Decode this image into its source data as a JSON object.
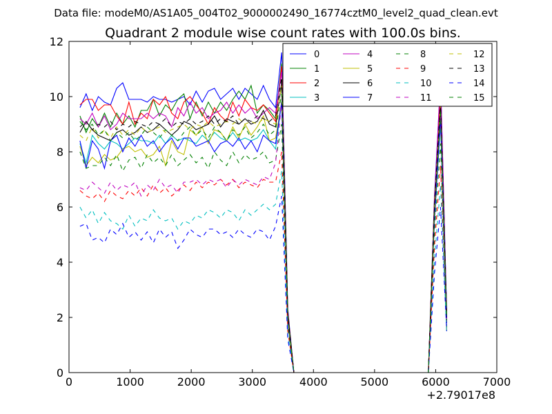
{
  "figure": {
    "suptitle": "Data file: modeM0/AS1A05_004T02_9000002490_16774cztM0_level2_quad_clean.evt"
  },
  "chart_data": {
    "type": "line",
    "title": "Quadrant 2 module wise count rates with 100.0s bins.",
    "xlabel": "",
    "ylabel": "",
    "x_offset_label": "+2.79017e8",
    "xlim": [
      0,
      7000
    ],
    "ylim": [
      0,
      12
    ],
    "x_ticks": [
      0,
      1000,
      2000,
      3000,
      4000,
      5000,
      6000,
      7000
    ],
    "y_ticks": [
      0,
      2,
      4,
      6,
      8,
      10,
      12
    ],
    "grid": false,
    "legend": {
      "placement": "top-right",
      "columns": 4
    },
    "x": [
      180,
      280,
      380,
      480,
      580,
      680,
      780,
      880,
      980,
      1080,
      1180,
      1280,
      1380,
      1480,
      1580,
      1680,
      1780,
      1880,
      1980,
      2080,
      2180,
      2280,
      2380,
      2480,
      2580,
      2680,
      2780,
      2880,
      2980,
      3080,
      3180,
      3280,
      3380,
      3480,
      3580,
      3680,
      3780,
      5880,
      5980,
      6080,
      6180
    ],
    "series": [
      {
        "name": "0",
        "color": "#0000ff",
        "dash": "solid",
        "values": [
          9.6,
          10.1,
          9.5,
          10.0,
          9.8,
          9.7,
          10.3,
          10.5,
          9.9,
          9.9,
          9.9,
          9.8,
          10.0,
          9.9,
          9.9,
          9.8,
          9.9,
          10.0,
          9.7,
          10.2,
          9.8,
          10.2,
          10.3,
          9.9,
          10.1,
          10.3,
          9.9,
          10.3,
          10.1,
          9.9,
          10.4,
          9.9,
          9.6,
          11.6,
          2.3,
          0.0,
          0.0,
          0.0,
          6.4,
          10.6,
          2.2
        ]
      },
      {
        "name": "1",
        "color": "#008000",
        "dash": "solid",
        "values": [
          9.3,
          8.7,
          9.2,
          8.9,
          9.4,
          8.9,
          9.4,
          9.0,
          9.3,
          8.9,
          9.5,
          9.5,
          9.9,
          9.3,
          9.7,
          9.5,
          9.9,
          10.1,
          9.2,
          9.8,
          9.3,
          9.8,
          9.4,
          9.8,
          9.5,
          9.9,
          10.2,
          9.9,
          10.4,
          9.4,
          9.7,
          9.5,
          9.2,
          11.2,
          2.2,
          0.0,
          0.0,
          0.0,
          6.2,
          10.3,
          2.1
        ]
      },
      {
        "name": "2",
        "color": "#ff0000",
        "dash": "solid",
        "values": [
          9.7,
          9.9,
          9.9,
          9.5,
          9.7,
          9.7,
          9.3,
          9.0,
          9.8,
          9.0,
          9.4,
          9.2,
          9.9,
          9.7,
          10.0,
          9.4,
          9.2,
          9.8,
          10.0,
          9.7,
          9.4,
          9.0,
          9.6,
          9.3,
          9.1,
          9.8,
          9.3,
          9.9,
          9.6,
          9.5,
          9.7,
          9.4,
          9.1,
          11.1,
          2.2,
          0.0,
          0.0,
          0.0,
          6.3,
          10.2,
          2.0
        ]
      },
      {
        "name": "3",
        "color": "#00bfbf",
        "dash": "solid",
        "values": [
          8.3,
          7.6,
          8.6,
          8.3,
          8.1,
          8.4,
          8.3,
          8.1,
          8.3,
          8.5,
          8.4,
          8.4,
          8.3,
          8.6,
          8.3,
          8.6,
          8.4,
          8.5,
          8.4,
          8.3,
          8.6,
          8.4,
          8.7,
          8.5,
          8.4,
          8.7,
          8.4,
          8.5,
          8.4,
          8.5,
          8.8,
          8.4,
          8.1,
          9.8,
          1.9,
          0.0,
          0.0,
          0.0,
          5.5,
          9.0,
          1.8
        ]
      },
      {
        "name": "4",
        "color": "#bf00bf",
        "dash": "solid",
        "values": [
          9.2,
          9.0,
          9.4,
          8.9,
          9.3,
          8.8,
          9.0,
          9.4,
          9.2,
          9.2,
          9.2,
          9.4,
          9.2,
          9.4,
          9.3,
          8.9,
          9.6,
          9.3,
          9.8,
          9.4,
          9.6,
          9.2,
          9.4,
          9.5,
          9.8,
          9.4,
          9.7,
          9.4,
          9.6,
          9.2,
          9.4,
          9.6,
          9.4,
          10.9,
          2.1,
          0.0,
          0.0,
          0.0,
          6.2,
          10.7,
          2.1
        ]
      },
      {
        "name": "5",
        "color": "#bfbf00",
        "dash": "solid",
        "values": [
          8.2,
          7.5,
          7.8,
          7.6,
          7.9,
          7.7,
          7.8,
          8.1,
          8.2,
          8.0,
          8.1,
          7.8,
          7.9,
          8.2,
          7.5,
          8.4,
          8.0,
          7.9,
          8.8,
          8.6,
          8.9,
          8.3,
          8.8,
          8.7,
          8.4,
          8.9,
          8.5,
          9.0,
          8.6,
          8.9,
          9.3,
          8.4,
          8.5,
          9.8,
          1.9,
          0.0,
          0.0,
          0.0,
          5.6,
          9.2,
          1.8
        ]
      },
      {
        "name": "6",
        "color": "#000000",
        "dash": "solid",
        "values": [
          8.7,
          9.1,
          8.8,
          8.6,
          8.5,
          8.4,
          8.7,
          8.8,
          8.6,
          8.7,
          8.9,
          8.7,
          8.8,
          9.0,
          8.8,
          8.6,
          8.8,
          9.1,
          9.0,
          8.8,
          8.9,
          9.0,
          9.3,
          8.9,
          9.2,
          9.1,
          9.0,
          9.2,
          9.0,
          9.1,
          9.5,
          9.0,
          8.9,
          10.5,
          2.1,
          0.0,
          0.0,
          0.0,
          6.0,
          9.7,
          2.0
        ]
      },
      {
        "name": "7",
        "color": "#0000ff",
        "dash": "solid",
        "values": [
          8.4,
          7.4,
          8.4,
          8.1,
          7.4,
          8.4,
          8.6,
          8.0,
          8.5,
          8.2,
          8.6,
          8.2,
          8.4,
          8.0,
          8.3,
          8.5,
          8.1,
          8.5,
          8.5,
          8.2,
          8.3,
          8.4,
          8.0,
          8.3,
          8.4,
          8.2,
          8.5,
          8.1,
          8.4,
          8.0,
          8.6,
          8.4,
          8.3,
          9.8,
          1.9,
          0.0,
          0.0,
          0.0,
          5.6,
          9.2,
          1.8
        ]
      },
      {
        "name": "8",
        "color": "#008000",
        "dash": "dashed",
        "values": [
          8.0,
          7.4,
          7.5,
          7.5,
          7.8,
          7.5,
          7.9,
          7.3,
          7.7,
          7.8,
          7.4,
          7.9,
          7.6,
          7.8,
          7.5,
          7.9,
          7.5,
          7.7,
          7.9,
          7.6,
          7.8,
          7.4,
          8.0,
          7.7,
          7.5,
          8.0,
          7.6,
          7.9,
          7.7,
          7.8,
          8.0,
          7.6,
          7.7,
          9.0,
          1.7,
          0.0,
          0.0,
          0.0,
          5.1,
          8.3,
          1.6
        ]
      },
      {
        "name": "9",
        "color": "#ff0000",
        "dash": "dashed",
        "values": [
          6.6,
          6.4,
          6.3,
          6.5,
          6.2,
          6.6,
          6.4,
          6.3,
          6.6,
          6.4,
          6.7,
          6.4,
          6.8,
          6.5,
          6.7,
          6.4,
          6.6,
          6.8,
          6.6,
          6.9,
          6.7,
          6.9,
          6.8,
          7.0,
          6.8,
          7.0,
          6.7,
          6.9,
          6.8,
          6.7,
          7.0,
          6.9,
          6.9,
          8.0,
          1.5,
          0.0,
          0.0,
          0.0,
          4.6,
          7.5,
          1.5
        ]
      },
      {
        "name": "10",
        "color": "#00bfbf",
        "dash": "dashed",
        "values": [
          6.0,
          5.6,
          5.9,
          5.4,
          5.8,
          5.5,
          5.4,
          5.2,
          5.7,
          5.3,
          5.6,
          5.5,
          5.9,
          5.6,
          5.5,
          5.6,
          5.2,
          5.5,
          5.4,
          5.7,
          5.6,
          5.9,
          5.8,
          5.6,
          5.9,
          5.8,
          5.5,
          5.9,
          5.7,
          5.9,
          6.1,
          5.9,
          6.1,
          7.3,
          1.4,
          0.0,
          0.0,
          0.0,
          4.1,
          6.8,
          1.4
        ]
      },
      {
        "name": "11",
        "color": "#bf00bf",
        "dash": "dashed",
        "values": [
          6.7,
          6.6,
          6.9,
          6.7,
          6.5,
          6.9,
          6.6,
          6.8,
          6.7,
          6.9,
          6.4,
          6.8,
          6.6,
          7.0,
          6.7,
          6.8,
          6.5,
          6.9,
          6.9,
          7.0,
          6.8,
          7.0,
          6.9,
          7.0,
          6.7,
          7.0,
          6.8,
          7.0,
          6.9,
          6.8,
          7.1,
          7.0,
          7.6,
          9.8,
          1.9,
          0.0,
          0.0,
          0.0,
          5.6,
          9.4,
          1.8
        ]
      },
      {
        "name": "12",
        "color": "#bfbf00",
        "dash": "dashed",
        "values": [
          8.6,
          8.4,
          8.9,
          8.5,
          8.8,
          8.5,
          8.9,
          8.6,
          8.8,
          8.6,
          8.9,
          8.7,
          8.8,
          8.9,
          8.7,
          8.8,
          8.9,
          9.0,
          8.8,
          9.0,
          8.9,
          9.1,
          8.9,
          9.0,
          9.1,
          9.0,
          9.2,
          9.0,
          9.1,
          9.0,
          9.2,
          9.1,
          9.0,
          10.4,
          2.0,
          0.0,
          0.0,
          0.0,
          6.0,
          9.7,
          2.0
        ]
      },
      {
        "name": "13",
        "color": "#000000",
        "dash": "dashed",
        "values": [
          8.9,
          9.1,
          8.8,
          9.0,
          8.9,
          9.1,
          8.8,
          9.0,
          8.9,
          9.1,
          9.0,
          8.9,
          9.1,
          9.0,
          9.2,
          8.9,
          9.1,
          9.0,
          9.2,
          9.0,
          9.1,
          9.3,
          9.0,
          9.2,
          9.1,
          9.3,
          9.0,
          9.2,
          9.1,
          9.3,
          9.2,
          9.1,
          9.3,
          10.7,
          2.1,
          0.0,
          0.0,
          0.0,
          6.1,
          9.9,
          2.0
        ]
      },
      {
        "name": "14",
        "color": "#0000ff",
        "dash": "dashed",
        "values": [
          5.3,
          5.4,
          4.8,
          4.9,
          4.7,
          5.2,
          5.0,
          5.4,
          4.9,
          5.1,
          4.8,
          5.1,
          4.7,
          5.2,
          4.9,
          5.1,
          4.5,
          4.8,
          5.2,
          5.0,
          4.9,
          5.2,
          5.2,
          5.0,
          5.1,
          4.9,
          5.2,
          5.0,
          4.9,
          5.2,
          5.1,
          4.8,
          5.3,
          6.4,
          1.2,
          0.0,
          0.0,
          0.0,
          3.6,
          6.0,
          1.5
        ]
      },
      {
        "name": "15",
        "color": "#008000",
        "dash": "dashed",
        "values": [
          9.1,
          8.8,
          9.0,
          8.6,
          8.8,
          8.4,
          8.7,
          8.5,
          8.7,
          8.4,
          8.6,
          8.9,
          8.7,
          8.5,
          8.8,
          8.6,
          8.4,
          8.7,
          8.9,
          8.6,
          8.8,
          8.5,
          8.9,
          8.7,
          8.4,
          8.8,
          8.6,
          8.9,
          8.5,
          8.7,
          9.0,
          8.6,
          8.8,
          10.1,
          2.0,
          0.0,
          0.0,
          0.0,
          5.8,
          9.5,
          1.9
        ]
      }
    ]
  }
}
